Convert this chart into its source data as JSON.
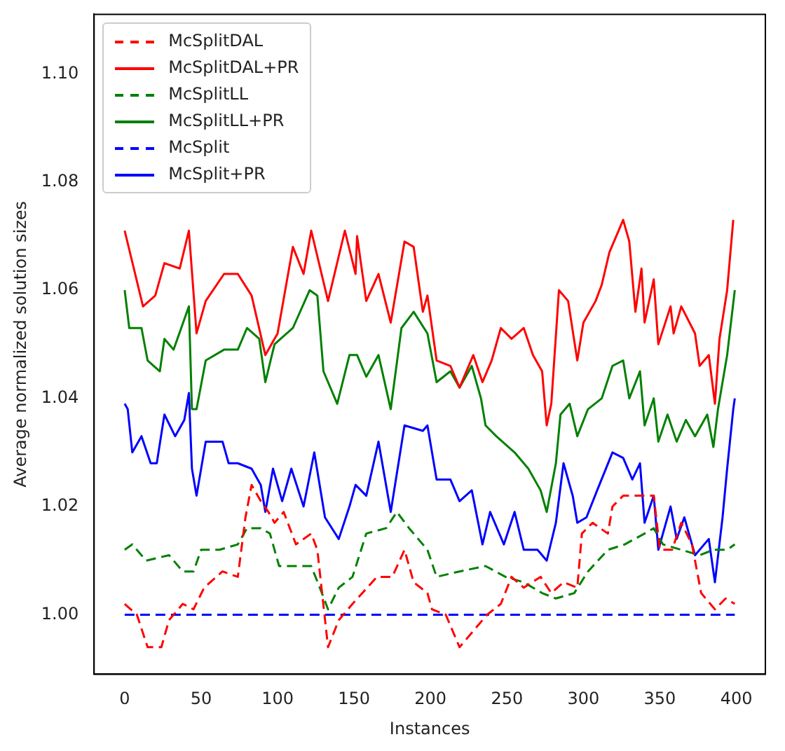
{
  "chart_data": {
    "type": "line",
    "xlabel": "Instances",
    "ylabel": "Average normalized solution sizes",
    "xlim": [
      -20,
      419
    ],
    "ylim": [
      0.989,
      1.111
    ],
    "xticks": [
      0,
      50,
      100,
      150,
      200,
      250,
      300,
      350,
      400
    ],
    "yticks": [
      {
        "value": 1.0,
        "label": "1.00"
      },
      {
        "value": 1.02,
        "label": "1.02"
      },
      {
        "value": 1.04,
        "label": "1.04"
      },
      {
        "value": 1.06,
        "label": "1.06"
      },
      {
        "value": 1.08,
        "label": "1.08"
      },
      {
        "value": 1.1,
        "label": "1.10"
      }
    ],
    "grid": false,
    "legend": "top left",
    "marker": "none",
    "series": [
      {
        "name": "McSplitDAL",
        "color": "#ff0000",
        "line_style": "dashed",
        "x": [
          0,
          8,
          15,
          24,
          29,
          38,
          45,
          52,
          64,
          74,
          79,
          83,
          89,
          94,
          98,
          104,
          112,
          122,
          126,
          133,
          140,
          149,
          165,
          175,
          183,
          189,
          198,
          201,
          210,
          219,
          228,
          237,
          246,
          253,
          261,
          272,
          279,
          287,
          296,
          299,
          306,
          316,
          319,
          326,
          337,
          346,
          350,
          358,
          364,
          371,
          377,
          386,
          393,
          399
        ],
        "values": [
          1.002,
          1.0,
          0.994,
          0.994,
          0.999,
          1.002,
          1.001,
          1.005,
          1.008,
          1.007,
          1.018,
          1.024,
          1.021,
          1.019,
          1.017,
          1.019,
          1.013,
          1.015,
          1.012,
          0.994,
          0.999,
          1.002,
          1.007,
          1.007,
          1.012,
          1.006,
          1.004,
          1.001,
          1.0,
          0.994,
          0.997,
          1.0,
          1.002,
          1.007,
          1.005,
          1.007,
          1.004,
          1.006,
          1.005,
          1.015,
          1.017,
          1.015,
          1.02,
          1.022,
          1.022,
          1.022,
          1.012,
          1.012,
          1.017,
          1.013,
          1.004,
          1.001,
          1.003,
          1.002
        ]
      },
      {
        "name": "McSplitDAL+PR",
        "color": "#ff0000",
        "line_style": "solid",
        "x": [
          0,
          12,
          20,
          26,
          36,
          42,
          47,
          53,
          65,
          74,
          83,
          92,
          100,
          110,
          117,
          122,
          133,
          144,
          151,
          152,
          158,
          166,
          174,
          183,
          189,
          195,
          198,
          204,
          213,
          219,
          228,
          234,
          240,
          246,
          253,
          261,
          267,
          273,
          276,
          279,
          284,
          290,
          296,
          300,
          308,
          312,
          317,
          326,
          330,
          334,
          338,
          340,
          346,
          349,
          357,
          359,
          364,
          373,
          376,
          382,
          386,
          389,
          394,
          398
        ],
        "values": [
          1.071,
          1.057,
          1.059,
          1.065,
          1.064,
          1.071,
          1.052,
          1.058,
          1.063,
          1.063,
          1.059,
          1.048,
          1.052,
          1.068,
          1.063,
          1.071,
          1.058,
          1.071,
          1.063,
          1.07,
          1.058,
          1.063,
          1.054,
          1.069,
          1.068,
          1.056,
          1.059,
          1.047,
          1.046,
          1.042,
          1.048,
          1.043,
          1.047,
          1.053,
          1.051,
          1.053,
          1.048,
          1.045,
          1.035,
          1.039,
          1.06,
          1.058,
          1.047,
          1.054,
          1.058,
          1.061,
          1.067,
          1.073,
          1.069,
          1.056,
          1.064,
          1.054,
          1.062,
          1.05,
          1.057,
          1.052,
          1.057,
          1.052,
          1.046,
          1.048,
          1.039,
          1.051,
          1.06,
          1.073
        ]
      },
      {
        "name": "McSplitLL",
        "color": "#008000",
        "line_style": "dashed",
        "x": [
          0,
          5,
          14,
          29,
          38,
          45,
          50,
          62,
          74,
          80,
          89,
          95,
          101,
          110,
          122,
          129,
          133,
          140,
          149,
          158,
          171,
          178,
          186,
          198,
          204,
          219,
          236,
          249,
          261,
          273,
          282,
          294,
          303,
          316,
          327,
          340,
          346,
          352,
          364,
          376,
          385,
          394,
          399
        ],
        "values": [
          1.012,
          1.013,
          1.01,
          1.011,
          1.008,
          1.008,
          1.012,
          1.012,
          1.013,
          1.016,
          1.016,
          1.015,
          1.009,
          1.009,
          1.009,
          1.004,
          1.001,
          1.005,
          1.007,
          1.015,
          1.016,
          1.019,
          1.016,
          1.012,
          1.007,
          1.008,
          1.009,
          1.007,
          1.006,
          1.004,
          1.003,
          1.004,
          1.008,
          1.012,
          1.013,
          1.015,
          1.016,
          1.013,
          1.012,
          1.011,
          1.012,
          1.012,
          1.013
        ]
      },
      {
        "name": "McSplitLL+PR",
        "color": "#008000",
        "line_style": "solid",
        "x": [
          0,
          3,
          11,
          15,
          23,
          26,
          32,
          42,
          44,
          47,
          53,
          65,
          74,
          80,
          88,
          92,
          98,
          110,
          121,
          126,
          130,
          139,
          147,
          152,
          158,
          166,
          174,
          181,
          189,
          198,
          204,
          213,
          219,
          227,
          233,
          236,
          243,
          255,
          264,
          272,
          276,
          282,
          285,
          291,
          296,
          303,
          312,
          319,
          326,
          330,
          337,
          340,
          346,
          349,
          355,
          361,
          367,
          373,
          381,
          385,
          388,
          394,
          399
        ],
        "values": [
          1.06,
          1.053,
          1.053,
          1.047,
          1.045,
          1.051,
          1.049,
          1.057,
          1.038,
          1.038,
          1.047,
          1.049,
          1.049,
          1.053,
          1.051,
          1.043,
          1.05,
          1.053,
          1.06,
          1.059,
          1.045,
          1.039,
          1.048,
          1.048,
          1.044,
          1.048,
          1.038,
          1.053,
          1.056,
          1.052,
          1.043,
          1.045,
          1.042,
          1.046,
          1.04,
          1.035,
          1.033,
          1.03,
          1.027,
          1.023,
          1.019,
          1.028,
          1.037,
          1.039,
          1.033,
          1.038,
          1.04,
          1.046,
          1.047,
          1.04,
          1.045,
          1.035,
          1.04,
          1.032,
          1.037,
          1.032,
          1.036,
          1.033,
          1.037,
          1.031,
          1.038,
          1.048,
          1.06
        ]
      },
      {
        "name": "McSplit",
        "color": "#0000ff",
        "line_style": "dashed",
        "x": [
          0,
          399
        ],
        "values": [
          1.0,
          1.0
        ]
      },
      {
        "name": "McSplit+PR",
        "color": "#0000ff",
        "line_style": "solid",
        "x": [
          0,
          2,
          5,
          11,
          17,
          21,
          26,
          33,
          39,
          42,
          44,
          47,
          53,
          64,
          68,
          74,
          83,
          89,
          92,
          97,
          103,
          109,
          117,
          124,
          131,
          140,
          147,
          151,
          158,
          166,
          174,
          183,
          195,
          198,
          204,
          213,
          219,
          227,
          234,
          239,
          248,
          255,
          261,
          270,
          276,
          282,
          287,
          293,
          296,
          302,
          309,
          319,
          326,
          332,
          337,
          340,
          346,
          349,
          357,
          361,
          366,
          373,
          382,
          386,
          391,
          394,
          398,
          399
        ],
        "values": [
          1.039,
          1.038,
          1.03,
          1.033,
          1.028,
          1.028,
          1.037,
          1.033,
          1.036,
          1.041,
          1.027,
          1.022,
          1.032,
          1.032,
          1.028,
          1.028,
          1.027,
          1.024,
          1.019,
          1.027,
          1.021,
          1.027,
          1.02,
          1.03,
          1.018,
          1.014,
          1.02,
          1.024,
          1.022,
          1.032,
          1.019,
          1.035,
          1.034,
          1.035,
          1.025,
          1.025,
          1.021,
          1.023,
          1.013,
          1.019,
          1.013,
          1.019,
          1.012,
          1.012,
          1.01,
          1.017,
          1.028,
          1.022,
          1.017,
          1.018,
          1.023,
          1.03,
          1.029,
          1.025,
          1.028,
          1.017,
          1.022,
          1.012,
          1.02,
          1.014,
          1.018,
          1.011,
          1.014,
          1.006,
          1.018,
          1.027,
          1.038,
          1.04
        ]
      }
    ]
  }
}
